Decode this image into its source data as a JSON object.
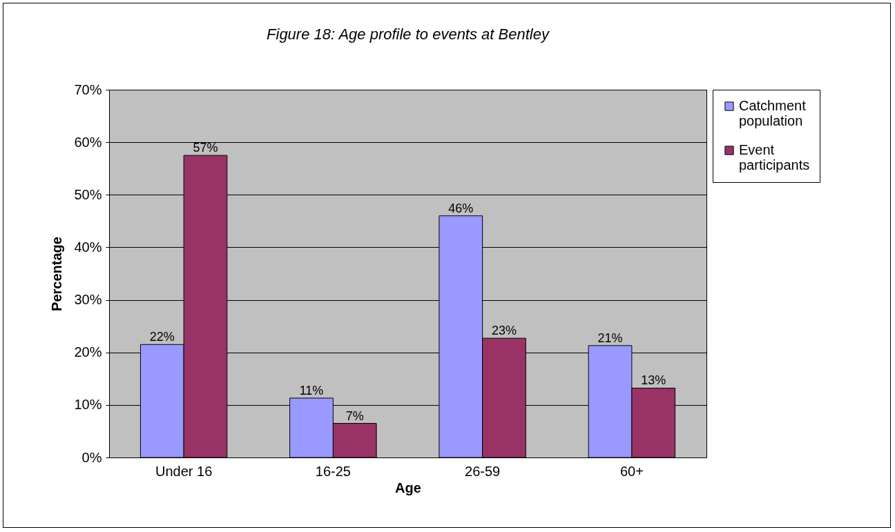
{
  "chart_data": {
    "type": "bar",
    "title": "Figure 18: Age profile to events at Bentley",
    "xlabel": "Age",
    "ylabel": "Percentage",
    "categories": [
      "Under 16",
      "16-25",
      "26-59",
      "60+"
    ],
    "series": [
      {
        "name": "Catchment population",
        "color": "#9999ff",
        "values": [
          21.5,
          11.3,
          46,
          21.3
        ],
        "value_labels": [
          "22%",
          "11%",
          "46%",
          "21%"
        ]
      },
      {
        "name": "Event participants",
        "color": "#993366",
        "values": [
          57.5,
          6.5,
          22.7,
          13.2
        ],
        "value_labels": [
          "57%",
          "7%",
          "23%",
          "13%"
        ]
      }
    ],
    "ylim": [
      0,
      70
    ],
    "yticks": [
      {
        "value": 0,
        "label": "0%"
      },
      {
        "value": 10,
        "label": "10%"
      },
      {
        "value": 20,
        "label": "20%"
      },
      {
        "value": 30,
        "label": "30%"
      },
      {
        "value": 40,
        "label": "40%"
      },
      {
        "value": 50,
        "label": "50%"
      },
      {
        "value": 60,
        "label": "60%"
      },
      {
        "value": 70,
        "label": "70%"
      }
    ],
    "grid": "y",
    "legend": "right"
  }
}
